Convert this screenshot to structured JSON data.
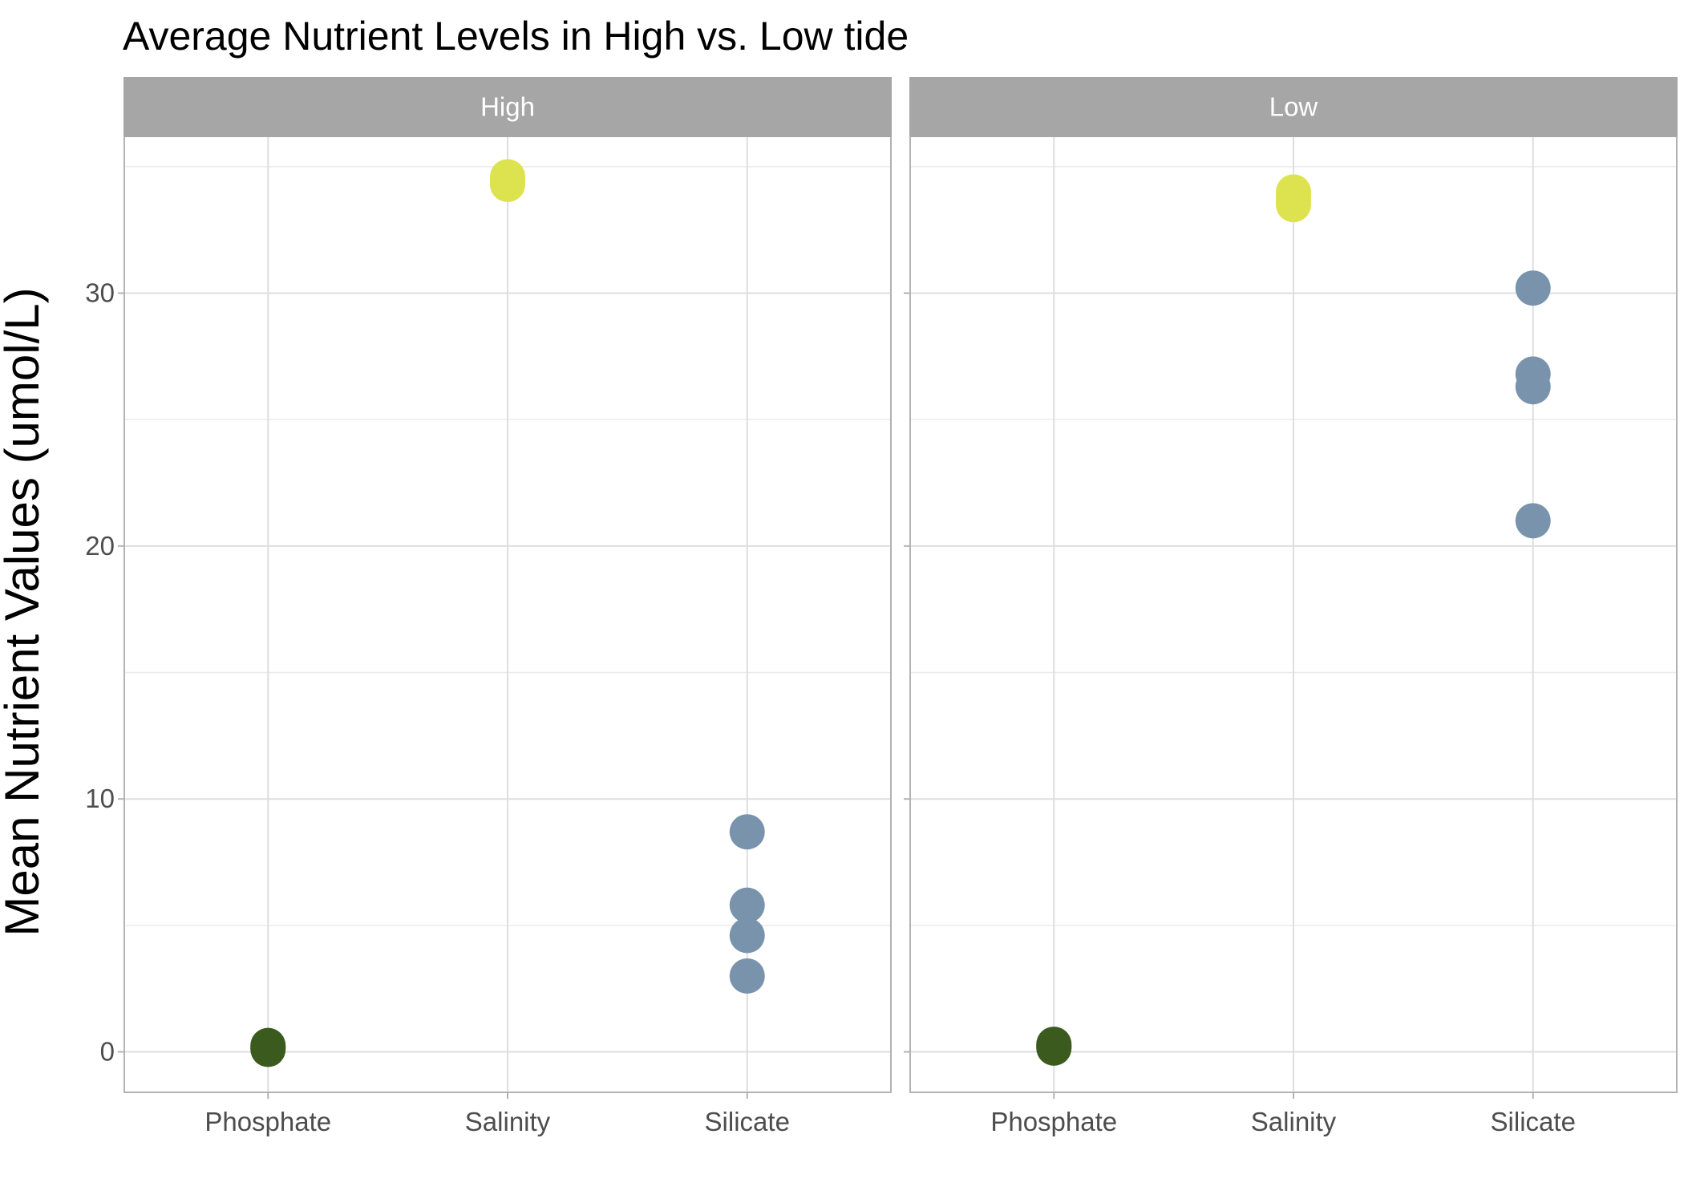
{
  "chart_data": {
    "type": "scatter",
    "title": "Average Nutrient Levels in High vs. Low tide",
    "xlabel": "",
    "ylabel": "Mean Nutrient Values (umol/L)",
    "ylim": [
      -1.6,
      36.2
    ],
    "y_ticks": [
      "0",
      "10",
      "20",
      "30"
    ],
    "y_tick_values": [
      0,
      10,
      20,
      30
    ],
    "categories": [
      "Phosphate",
      "Salinity",
      "Silicate"
    ],
    "colors": {
      "Phosphate": "#3b5a1e",
      "Salinity": "#dde34e",
      "Silicate": "#7a93ad"
    },
    "grid": true,
    "legend": "none",
    "panels": [
      {
        "label": "High",
        "points": [
          {
            "category": "Phosphate",
            "y": 0.1
          },
          {
            "category": "Phosphate",
            "y": 0.15
          },
          {
            "category": "Phosphate",
            "y": 0.2
          },
          {
            "category": "Phosphate",
            "y": 0.25
          },
          {
            "category": "Salinity",
            "y": 34.3
          },
          {
            "category": "Salinity",
            "y": 34.4
          },
          {
            "category": "Salinity",
            "y": 34.5
          },
          {
            "category": "Salinity",
            "y": 34.6
          },
          {
            "category": "Silicate",
            "y": 8.7
          },
          {
            "category": "Silicate",
            "y": 5.8
          },
          {
            "category": "Silicate",
            "y": 4.6
          },
          {
            "category": "Silicate",
            "y": 3.0
          }
        ]
      },
      {
        "label": "Low",
        "points": [
          {
            "category": "Phosphate",
            "y": 0.15
          },
          {
            "category": "Phosphate",
            "y": 0.2
          },
          {
            "category": "Phosphate",
            "y": 0.25
          },
          {
            "category": "Phosphate",
            "y": 0.3
          },
          {
            "category": "Salinity",
            "y": 33.5
          },
          {
            "category": "Salinity",
            "y": 33.7
          },
          {
            "category": "Salinity",
            "y": 33.9
          },
          {
            "category": "Salinity",
            "y": 34.0
          },
          {
            "category": "Silicate",
            "y": 30.2
          },
          {
            "category": "Silicate",
            "y": 26.8
          },
          {
            "category": "Silicate",
            "y": 26.3
          },
          {
            "category": "Silicate",
            "y": 21.0
          }
        ]
      }
    ]
  }
}
